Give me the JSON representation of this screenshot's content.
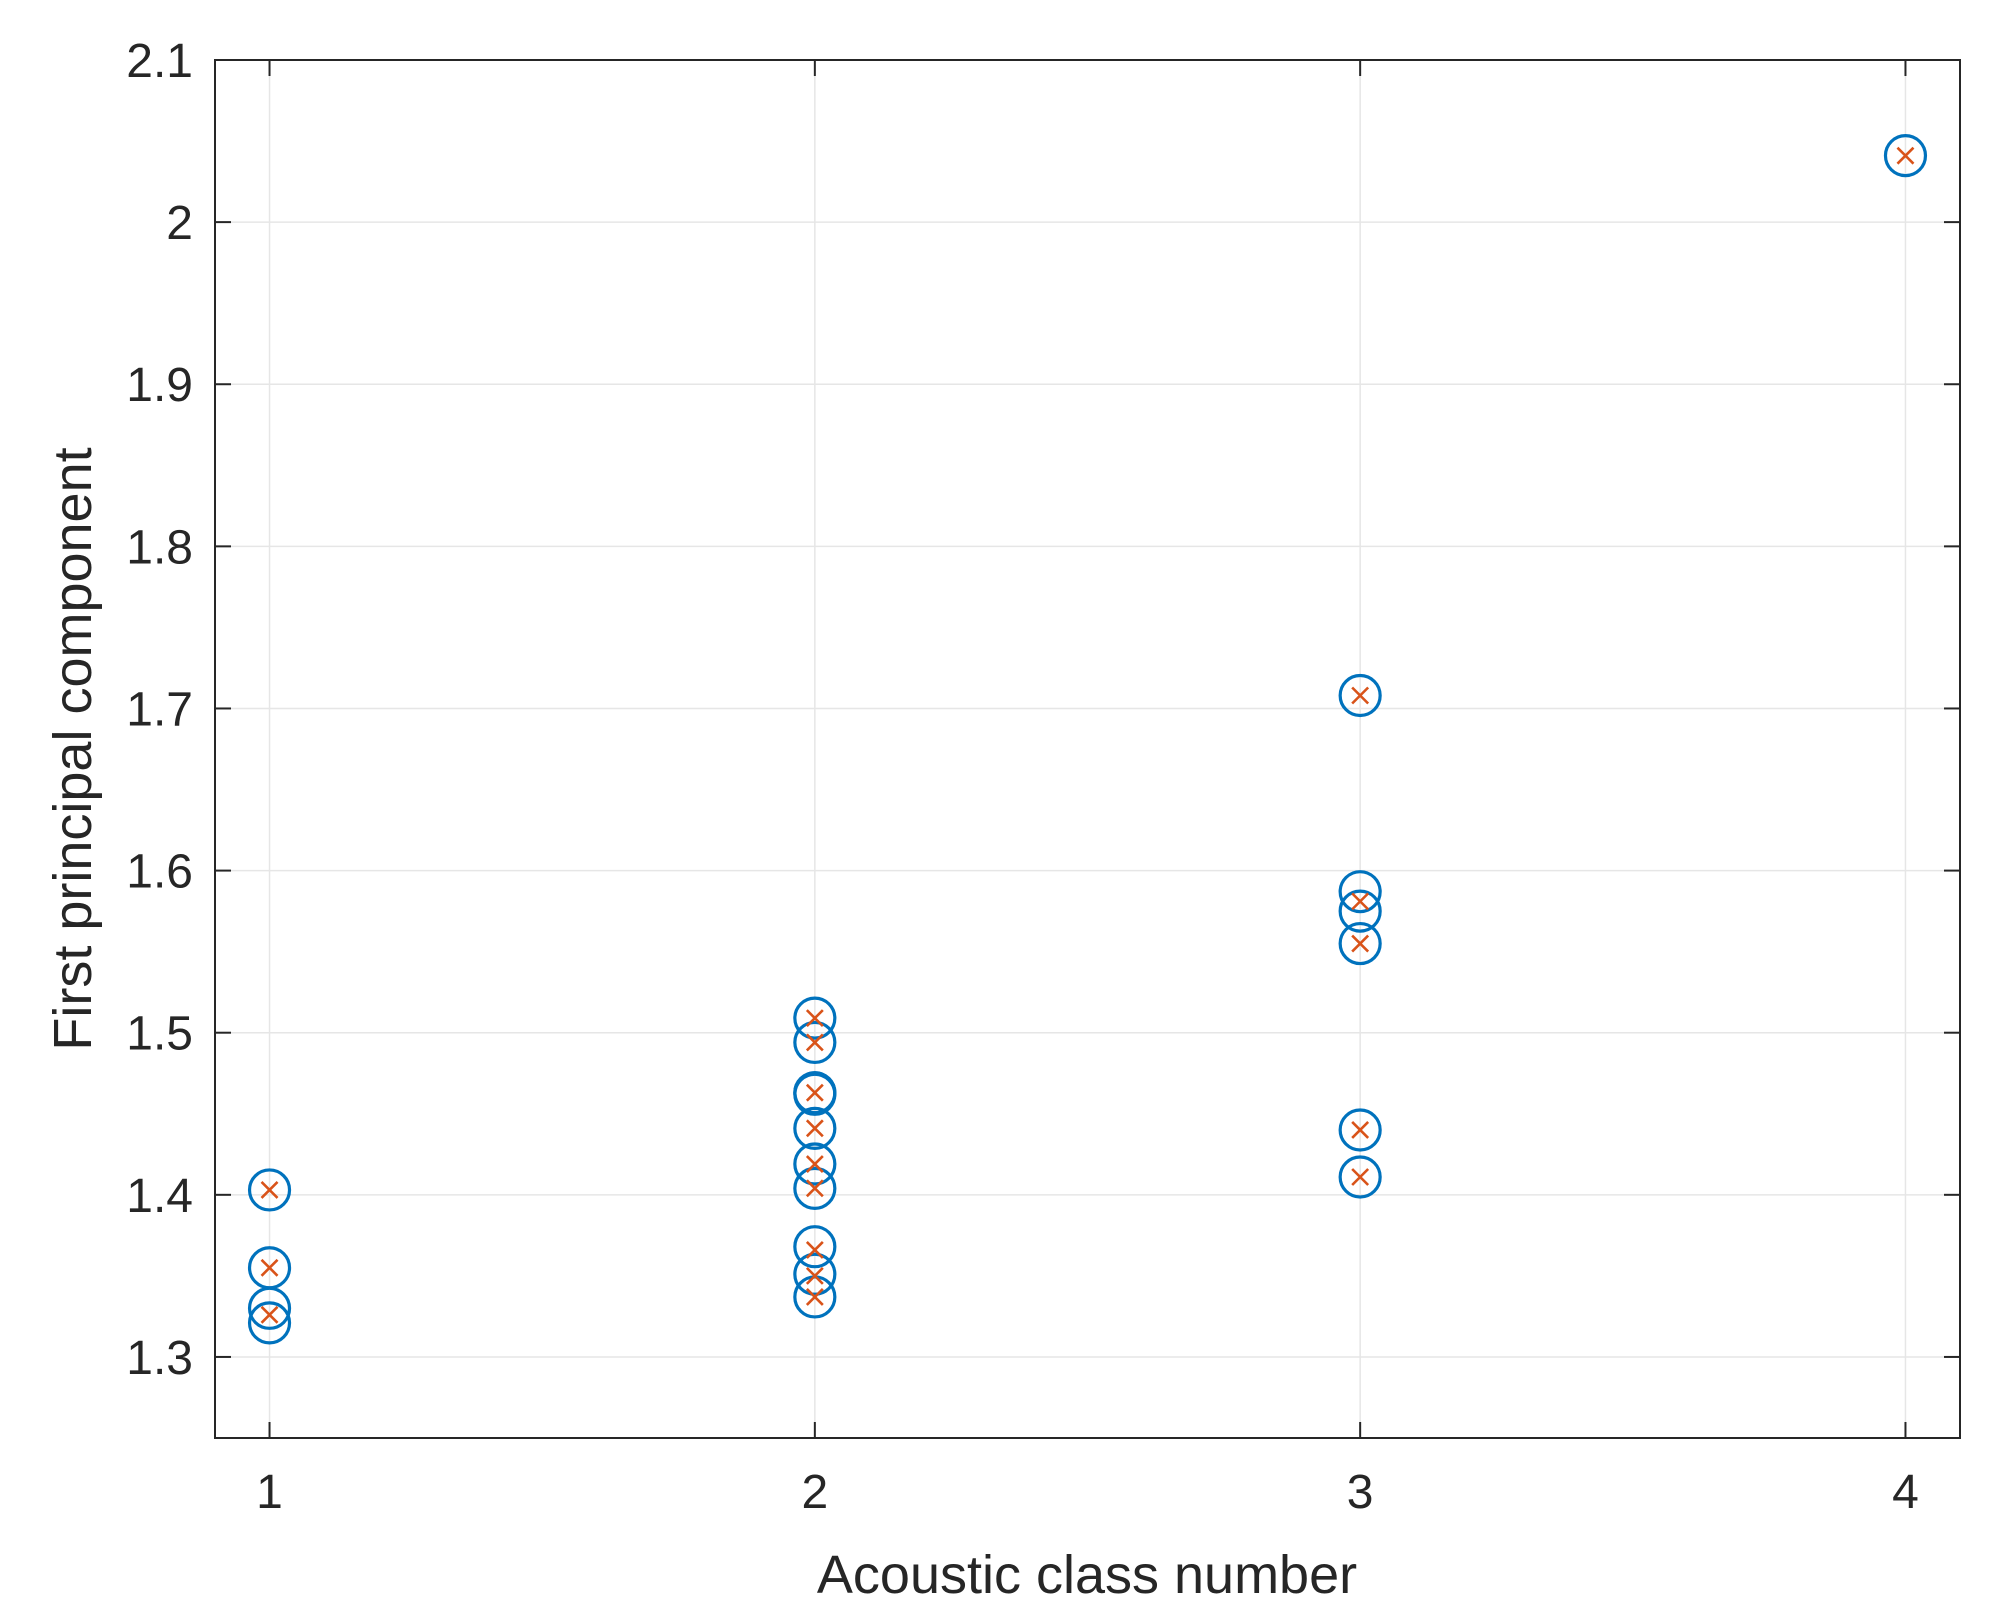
{
  "chart_data": {
    "type": "scatter",
    "title": "",
    "xlabel": "Acoustic class number",
    "ylabel": "First principal component",
    "xlim": [
      0.9,
      4.1
    ],
    "ylim": [
      1.25,
      2.1
    ],
    "xticks": [
      "1",
      "2",
      "3",
      "4"
    ],
    "yticks": [
      "1.3",
      "1.4",
      "1.5",
      "1.6",
      "1.7",
      "1.8",
      "1.9",
      "2",
      "2.1"
    ],
    "grid": true,
    "legend": "none",
    "colors": {
      "circle": "#0072BD",
      "cross": "#D95319",
      "grid": "#e6e6e6",
      "axis": "#262626"
    },
    "series": [
      {
        "marker": "circle",
        "x": [
          1,
          1,
          1,
          1,
          2,
          2,
          2,
          2,
          2,
          2,
          2,
          2,
          2,
          2,
          2,
          3,
          3,
          3,
          3,
          3,
          3,
          4
        ],
        "y": [
          1.403,
          1.355,
          1.33,
          1.321,
          1.509,
          1.494,
          1.463,
          1.462,
          1.441,
          1.419,
          1.404,
          1.368,
          1.351,
          1.337,
          1.463,
          1.708,
          1.587,
          1.575,
          1.555,
          1.44,
          1.411,
          2.041
        ]
      },
      {
        "marker": "cross",
        "x": [
          1,
          1,
          1,
          2,
          2,
          2,
          2,
          2,
          2,
          2,
          2,
          2,
          3,
          3,
          3,
          3,
          3,
          4
        ],
        "y": [
          1.403,
          1.355,
          1.326,
          1.509,
          1.494,
          1.463,
          1.441,
          1.419,
          1.404,
          1.366,
          1.35,
          1.337,
          1.708,
          1.581,
          1.555,
          1.44,
          1.411,
          2.041
        ]
      }
    ]
  }
}
